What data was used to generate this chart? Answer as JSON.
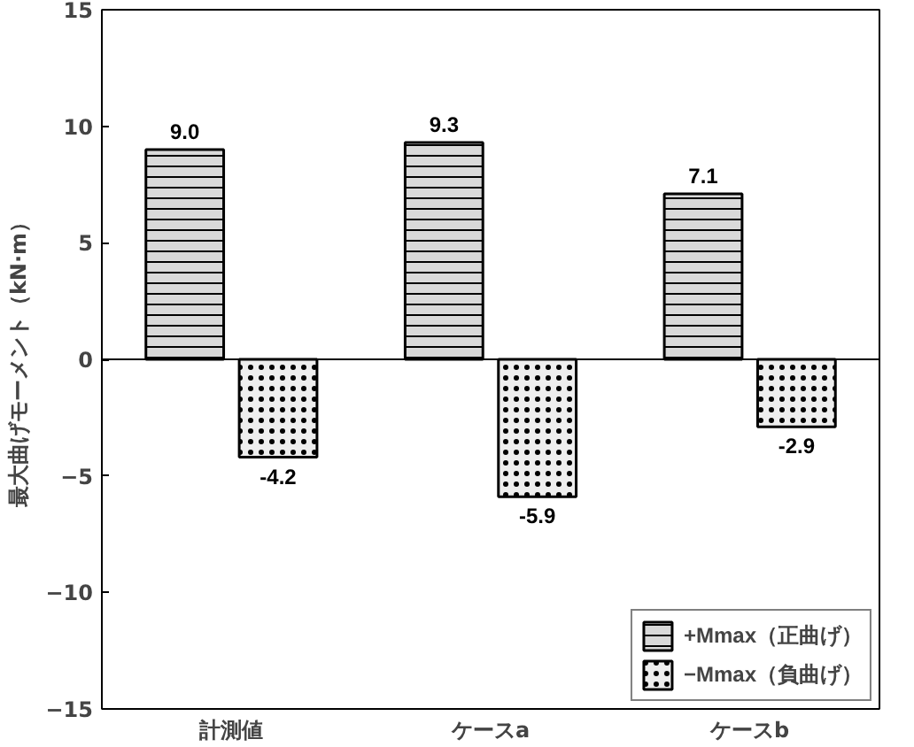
{
  "chart_data": {
    "type": "bar",
    "ylabel": "最大曲げモーメント（kN·m）",
    "categories": [
      "計測値",
      "ケースa",
      "ケースb"
    ],
    "series": [
      {
        "name": "+Mmax（正曲げ）",
        "color": "#d9d9d9",
        "values": [
          9.0,
          9.3,
          7.1
        ],
        "value_labels": [
          "9.0",
          "9.3",
          "7.1"
        ]
      },
      {
        "name": "−Mmax（負曲げ）",
        "color": "#eeeeee",
        "values": [
          -4.2,
          -5.9,
          -2.9
        ],
        "value_labels": [
          "-4.2",
          "-5.9",
          "-2.9"
        ]
      }
    ],
    "ylim": [
      -15,
      15
    ],
    "yticks": [
      -15,
      -10,
      -5,
      0,
      5,
      10,
      15
    ],
    "ref_lines": [
      {
        "axis": "y",
        "value": 0,
        "label": null
      }
    ],
    "grid": false,
    "legend": "bottom right"
  }
}
